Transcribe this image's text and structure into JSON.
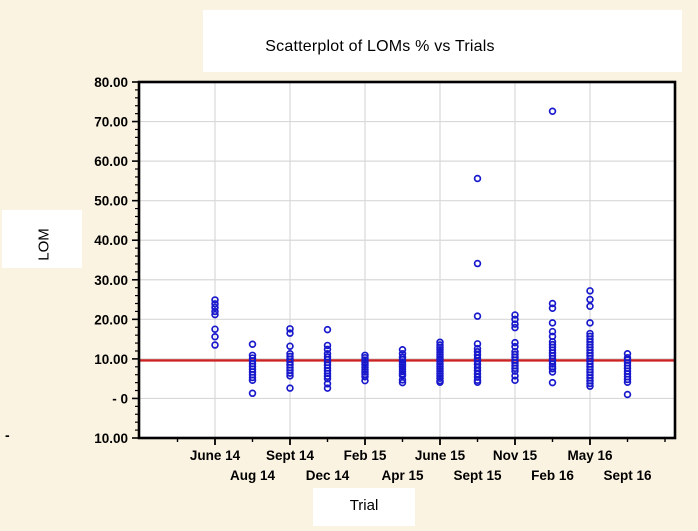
{
  "title": "Scatterplot of LOMs % vs Trials",
  "colors": {
    "background": "#fbf3e1",
    "plot_background": "#ffffff",
    "grid": "#d8d8d8",
    "frame": "#000000",
    "marker": "#1818cc",
    "reference_line": "#cc2222",
    "text": "#000000"
  },
  "displaced_minus_sign": "-",
  "chart_data": {
    "type": "scatter",
    "title": "Scatterplot of LOMs % vs Trials",
    "xlabel": "Trial",
    "ylabel": "LOM",
    "ylim": [
      -10,
      80
    ],
    "grid": true,
    "legend_position": "none",
    "marker_style": "open-circle",
    "reference_line_y": 9.6,
    "y_ticks": [
      {
        "v": 80,
        "label": "80.00"
      },
      {
        "v": 70,
        "label": "70.00"
      },
      {
        "v": 60,
        "label": "60.00"
      },
      {
        "v": 50,
        "label": "50.00"
      },
      {
        "v": 40,
        "label": "40.00"
      },
      {
        "v": 30,
        "label": "30.00"
      },
      {
        "v": 20,
        "label": "20.00"
      },
      {
        "v": 10,
        "label": "10.00"
      },
      {
        "v": 0,
        "label": "- 0"
      },
      {
        "v": -10,
        "label": "10.00"
      }
    ],
    "y_minor_tick_step": 2,
    "categories": [
      "June 14",
      "Aug 14",
      "Sept 14",
      "Dec 14",
      "Feb 15",
      "Apr 15",
      "June 15",
      "Sept 15",
      "Nov 15",
      "Feb 16",
      "May 16",
      "Sept 16"
    ],
    "series": [
      {
        "name": "LOM %",
        "points_by_trial": [
          [
            24.9,
            23.9,
            23.0,
            22.0,
            21.2,
            17.5,
            15.6,
            13.5
          ],
          [
            13.7,
            10.9,
            10.2,
            9.5,
            8.8,
            8.1,
            7.4,
            6.7,
            6.0,
            5.3,
            4.6,
            1.3
          ],
          [
            17.6,
            16.5,
            13.2,
            11.3,
            10.6,
            9.9,
            9.2,
            8.5,
            7.8,
            7.1,
            6.4,
            5.7,
            2.6
          ],
          [
            17.4,
            13.4,
            12.4,
            11.3,
            10.5,
            9.8,
            9.1,
            8.4,
            7.7,
            7.0,
            6.3,
            5.6,
            5.0,
            3.7,
            2.6
          ],
          [
            10.9,
            10.3,
            9.7,
            9.1,
            8.5,
            7.9,
            7.3,
            6.7,
            6.1,
            5.5,
            4.5
          ],
          [
            12.3,
            11.3,
            10.4,
            9.8,
            9.2,
            8.6,
            8.0,
            7.4,
            6.8,
            6.2,
            5.8,
            4.7,
            4.0
          ],
          [
            14.2,
            13.5,
            12.9,
            12.3,
            11.7,
            11.1,
            10.5,
            9.9,
            9.3,
            8.7,
            8.1,
            7.5,
            6.9,
            6.3,
            5.7,
            5.1,
            4.5,
            4.1
          ],
          [
            55.6,
            34.1,
            20.8,
            13.8,
            12.6,
            11.8,
            11.0,
            10.2,
            9.4,
            8.6,
            7.8,
            7.0,
            6.2,
            5.4,
            4.6,
            4.1
          ],
          [
            21.1,
            20.0,
            18.8,
            17.9,
            14.1,
            13.1,
            11.8,
            11.1,
            10.4,
            9.7,
            9.0,
            8.3,
            7.6,
            6.9,
            5.7,
            4.6
          ],
          [
            72.6,
            24.0,
            22.8,
            19.1,
            16.9,
            15.7,
            14.3,
            13.6,
            12.9,
            12.2,
            11.5,
            10.8,
            10.1,
            9.4,
            8.7,
            8.0,
            7.5,
            6.7,
            4.0
          ],
          [
            27.2,
            25.0,
            23.3,
            19.1,
            16.4,
            15.7,
            15.0,
            14.3,
            13.6,
            12.9,
            12.2,
            11.5,
            10.8,
            10.1,
            9.4,
            8.7,
            8.0,
            7.3,
            6.6,
            5.9,
            5.2,
            4.5,
            3.8,
            3.1
          ],
          [
            11.3,
            10.3,
            9.7,
            9.0,
            8.3,
            7.6,
            6.9,
            6.2,
            5.5,
            4.8,
            4.1,
            1.0
          ]
        ]
      }
    ]
  }
}
